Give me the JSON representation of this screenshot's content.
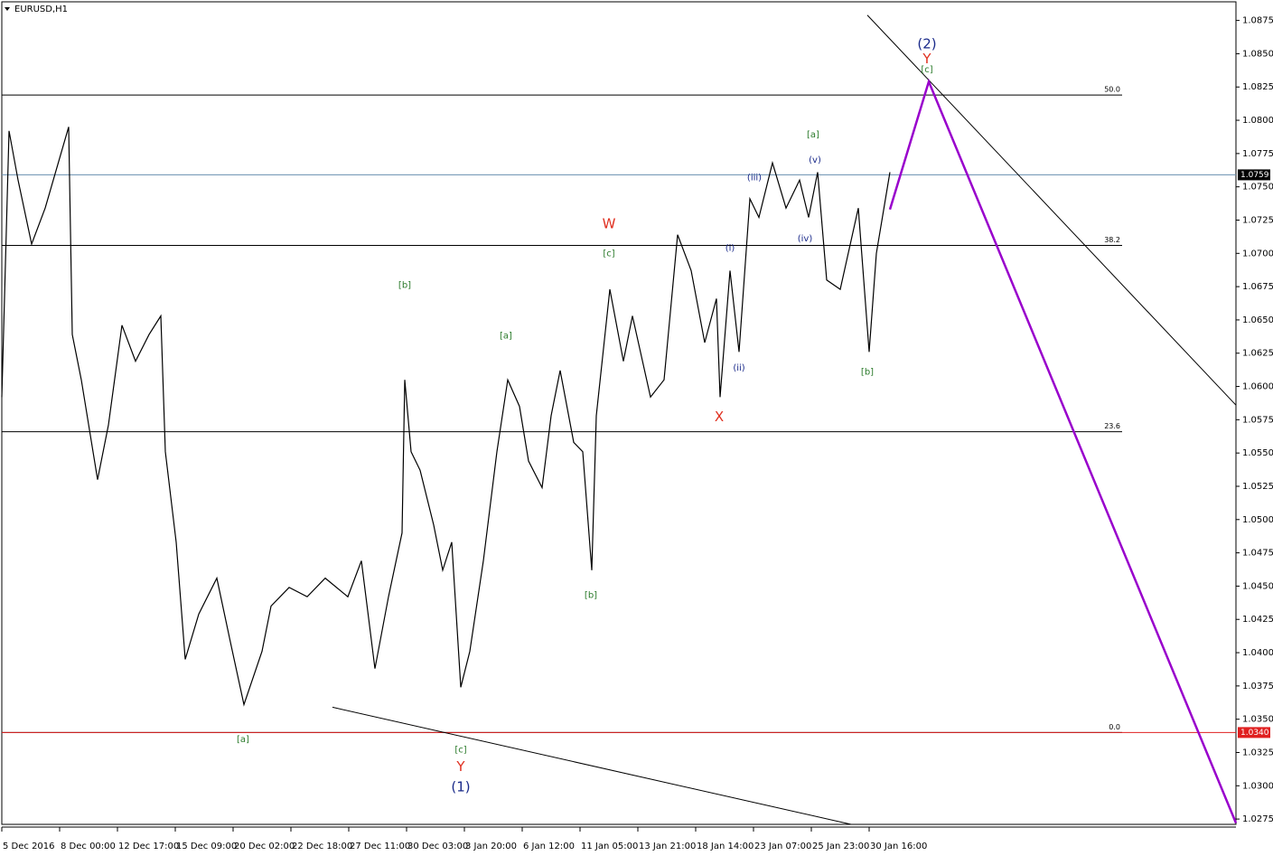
{
  "chart_data": {
    "type": "line",
    "title": "EURUSD,H1",
    "xlim": [
      0,
      1366
    ],
    "ylim": [
      1.0271,
      1.0889
    ],
    "xticks": [
      {
        "value": 0,
        "label": "5 Dec 2016"
      },
      {
        "value": 64,
        "label": "8 Dec 00:00"
      },
      {
        "value": 128,
        "label": "12 Dec 17:00"
      },
      {
        "value": 192,
        "label": "15 Dec 09:00"
      },
      {
        "value": 256,
        "label": "20 Dec 02:00"
      },
      {
        "value": 320,
        "label": "22 Dec 18:00"
      },
      {
        "value": 384,
        "label": "27 Dec 11:00"
      },
      {
        "value": 448,
        "label": "30 Dec 03:00"
      },
      {
        "value": 512,
        "label": "3 Jan 20:00"
      },
      {
        "value": 576,
        "label": "6 Jan 12:00"
      },
      {
        "value": 640,
        "label": "11 Jan 05:00"
      },
      {
        "value": 704,
        "label": "13 Jan 21:00"
      },
      {
        "value": 768,
        "label": "18 Jan 14:00"
      },
      {
        "value": 832,
        "label": "23 Jan 07:00"
      },
      {
        "value": 896,
        "label": "25 Jan 23:00"
      },
      {
        "value": 960,
        "label": "30 Jan 16:00"
      }
    ],
    "yticks": [
      1.0875,
      {
        "value": 1.085,
        "label": "1.0850"
      },
      1.0825,
      {
        "value": 1.08,
        "label": "1.0800"
      },
      1.0775,
      {
        "value": 1.075,
        "label": "1.0750"
      },
      1.0725,
      {
        "value": 1.07,
        "label": "1.0700"
      },
      1.0675,
      {
        "value": 1.065,
        "label": "1.0650"
      },
      1.0625,
      {
        "value": 1.06,
        "label": "1.0600"
      },
      1.0575,
      {
        "value": 1.055,
        "label": "1.0550"
      },
      1.0525,
      {
        "value": 1.05,
        "label": "1.0500"
      },
      1.0475,
      {
        "value": 1.045,
        "label": "1.0450"
      },
      1.0425,
      {
        "value": 1.04,
        "label": "1.0400"
      },
      1.0375,
      {
        "value": 1.035,
        "label": "1.0350"
      },
      1.0325,
      {
        "value": 1.03,
        "label": "1.0300"
      },
      1.0275
    ],
    "series": [
      {
        "color": "#000000",
        "x": [
          0,
          8,
          18,
          33,
          48,
          74,
          78,
          88,
          106,
          118,
          133,
          148,
          163,
          176,
          181,
          193,
          203,
          218,
          238,
          253,
          268,
          288,
          298,
          318,
          338,
          358,
          383,
          398,
          413,
          428,
          443,
          446,
          453,
          463,
          478,
          488,
          498,
          508,
          518,
          533,
          548,
          560,
          573,
          583,
          598,
          608,
          618,
          633,
          643,
          653,
          658,
          673,
          688,
          698,
          718,
          733,
          748,
          763,
          778,
          791,
          795,
          806,
          816,
          828,
          838,
          853,
          868,
          883,
          893,
          903,
          913,
          928,
          948,
          960,
          968,
          983
        ],
        "values": [
          1.0592,
          1.0792,
          1.0755,
          1.0707,
          1.0734,
          1.0795,
          1.0639,
          1.0605,
          1.053,
          1.0571,
          1.0646,
          1.0619,
          1.0639,
          1.0653,
          1.0551,
          1.0483,
          1.0395,
          1.0429,
          1.0456,
          1.0408,
          1.0361,
          1.0401,
          1.0435,
          1.0449,
          1.0442,
          1.0456,
          1.0442,
          1.0469,
          1.0388,
          1.0442,
          1.049,
          1.0605,
          1.0551,
          1.0537,
          1.0496,
          1.0462,
          1.0483,
          1.0374,
          1.0401,
          1.0469,
          1.0551,
          1.0605,
          1.0585,
          1.0544,
          1.0524,
          1.0578,
          1.0612,
          1.0558,
          1.0551,
          1.0462,
          1.0578,
          1.0673,
          1.0619,
          1.0653,
          1.0592,
          1.0605,
          1.0714,
          1.0687,
          1.0633,
          1.0666,
          1.0592,
          1.0687,
          1.0626,
          1.0741,
          1.0727,
          1.0768,
          1.0734,
          1.0755,
          1.0727,
          1.0761,
          1.068,
          1.0673,
          1.0734,
          1.0626,
          1.07,
          1.0761
        ]
      }
    ],
    "projection": {
      "color": "#9900cc",
      "x": [
        983,
        1026,
        1366
      ],
      "values": [
        1.0733,
        1.0829,
        1.0272
      ]
    },
    "trendlines": [
      {
        "x": [
          958,
          1366
        ],
        "values": [
          1.0879,
          1.0586
        ]
      },
      {
        "x": [
          366,
          940
        ],
        "values": [
          1.0359,
          1.0271
        ]
      }
    ],
    "fib_levels": [
      {
        "label": "50.0",
        "price": 1.0819
      },
      {
        "label": "38.2",
        "price": 1.0706
      },
      {
        "label": "23.6",
        "price": 1.0566
      },
      {
        "label": "0.0",
        "price": 1.034
      }
    ],
    "current_price": 1.0759,
    "marked_price": {
      "value": 1.034,
      "label": "1.0340"
    },
    "wave_labels": [
      {
        "text": "(2)",
        "color": "#1a2a8a",
        "x": 1024,
        "price": 1.0857
      },
      {
        "text": "Y",
        "color": "#e03020",
        "x": 1024,
        "price": 1.0846
      },
      {
        "text": "[c]",
        "color": "#2a7a2a",
        "x": 1024,
        "price": 1.0838
      },
      {
        "text": "[a]",
        "color": "#2a7a2a",
        "x": 898,
        "price": 1.0789
      },
      {
        "text": "(v)",
        "color": "#1a2a8a",
        "x": 900,
        "price": 1.077
      },
      {
        "text": "(iii)",
        "color": "#1a2a8a",
        "x": 833,
        "price": 1.0757
      },
      {
        "text": "(iv)",
        "color": "#1a2a8a",
        "x": 889,
        "price": 1.0711
      },
      {
        "text": "(i)",
        "color": "#1a2a8a",
        "x": 806,
        "price": 1.0704
      },
      {
        "text": "(ii)",
        "color": "#1a2a8a",
        "x": 816,
        "price": 1.0614
      },
      {
        "text": "W",
        "color": "#e03020",
        "x": 672,
        "price": 1.0722
      },
      {
        "text": "[c]",
        "color": "#2a7a2a",
        "x": 672,
        "price": 1.07
      },
      {
        "text": "[b]",
        "color": "#2a7a2a",
        "x": 446,
        "price": 1.0676
      },
      {
        "text": "[a]",
        "color": "#2a7a2a",
        "x": 558,
        "price": 1.0638
      },
      {
        "text": "X",
        "color": "#e03020",
        "x": 794,
        "price": 1.0577
      },
      {
        "text": "[b]",
        "color": "#2a7a2a",
        "x": 958,
        "price": 1.0611
      },
      {
        "text": "[b]",
        "color": "#2a7a2a",
        "x": 652,
        "price": 1.0443
      },
      {
        "text": "[a]",
        "color": "#2a7a2a",
        "x": 267,
        "price": 1.0335
      },
      {
        "text": "[c]",
        "color": "#2a7a2a",
        "x": 508,
        "price": 1.0327
      },
      {
        "text": "Y",
        "color": "#e03020",
        "x": 508,
        "price": 1.0314
      },
      {
        "text": "(1)",
        "color": "#1a2a8a",
        "x": 508,
        "price": 1.0299
      }
    ]
  }
}
